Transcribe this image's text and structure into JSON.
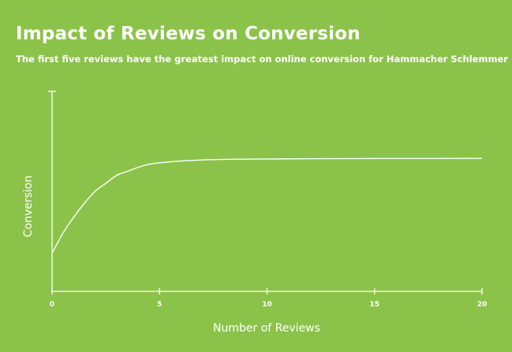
{
  "chart_data": {
    "type": "line",
    "title": "Impact of Reviews on Conversion",
    "subtitle": "The first five reviews have the greatest impact on online conversion for Hammacher Schlemmer",
    "xlabel": "Number of Reviews",
    "ylabel": "Conversion",
    "x_ticks": [
      "0",
      "5",
      "10",
      "15",
      "20"
    ],
    "xlim": [
      0,
      20
    ],
    "ylim": [
      0,
      1
    ],
    "grid": false,
    "legend": "none",
    "series": [
      {
        "x": [
          0,
          0.5,
          1,
          1.5,
          2,
          2.5,
          3,
          3.5,
          4,
          4.5,
          5,
          6,
          7,
          8,
          10,
          12,
          15,
          18,
          20
        ],
        "y": [
          0.19,
          0.29,
          0.37,
          0.44,
          0.5,
          0.54,
          0.58,
          0.6,
          0.62,
          0.635,
          0.643,
          0.652,
          0.657,
          0.66,
          0.662,
          0.663,
          0.664,
          0.664,
          0.665
        ]
      }
    ]
  },
  "colors": {
    "background": "#8bc34a",
    "foreground": "#ffffff"
  }
}
